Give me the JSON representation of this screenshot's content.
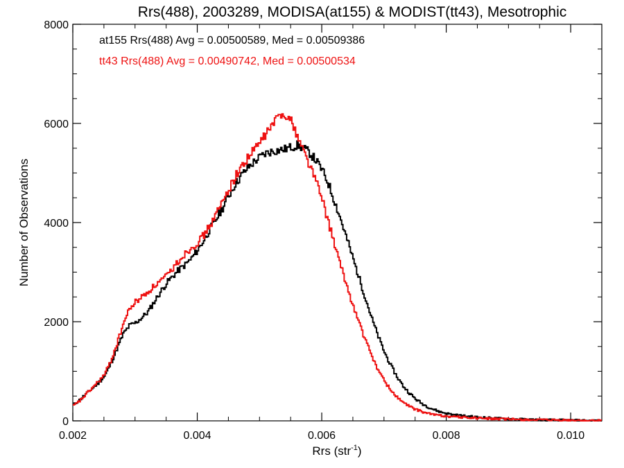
{
  "chart_data": {
    "type": "line",
    "title": "Rrs(488), 2003289, MODISA(at155) & MODIST(tt43), Mesotrophic",
    "xlabel_base": "Rrs (str",
    "xlabel_sup": "-1",
    "xlabel_end": ")",
    "ylabel": "Number of Observations",
    "xlim": [
      0.002,
      0.0105
    ],
    "ylim": [
      0,
      8000
    ],
    "x_ticks": [
      "0.002",
      "0.004",
      "0.006",
      "0.008",
      "0.010"
    ],
    "x_tick_values": [
      0.002,
      0.004,
      0.006,
      0.008,
      0.01
    ],
    "y_ticks": [
      "0",
      "2000",
      "4000",
      "6000",
      "8000"
    ],
    "y_tick_values": [
      0,
      2000,
      4000,
      6000,
      8000
    ],
    "grid": false,
    "annotations": [
      {
        "text": "at155 Rrs(488) Avg = 0.00500589, Med = 0.00509386",
        "color": "#000000"
      },
      {
        "text": "tt43 Rrs(488) Avg = 0.00490742, Med = 0.00500534",
        "color": "#ee1111"
      }
    ],
    "series": [
      {
        "color": "#000000",
        "step": true,
        "points": [
          [
            0.002,
            320
          ],
          [
            0.0021,
            420
          ],
          [
            0.0022,
            540
          ],
          [
            0.0023,
            650
          ],
          [
            0.0024,
            760
          ],
          [
            0.0025,
            900
          ],
          [
            0.0026,
            1150
          ],
          [
            0.0027,
            1450
          ],
          [
            0.0028,
            1750
          ],
          [
            0.0029,
            1920
          ],
          [
            0.003,
            1980
          ],
          [
            0.0031,
            2080
          ],
          [
            0.0032,
            2200
          ],
          [
            0.0033,
            2400
          ],
          [
            0.0034,
            2600
          ],
          [
            0.0035,
            2780
          ],
          [
            0.0036,
            2920
          ],
          [
            0.0037,
            3050
          ],
          [
            0.0038,
            3150
          ],
          [
            0.0039,
            3280
          ],
          [
            0.004,
            3450
          ],
          [
            0.0041,
            3650
          ],
          [
            0.0042,
            3880
          ],
          [
            0.0043,
            4080
          ],
          [
            0.0044,
            4300
          ],
          [
            0.0045,
            4550
          ],
          [
            0.0046,
            4780
          ],
          [
            0.0047,
            4950
          ],
          [
            0.0048,
            5100
          ],
          [
            0.0049,
            5220
          ],
          [
            0.005,
            5320
          ],
          [
            0.0051,
            5400
          ],
          [
            0.0052,
            5440
          ],
          [
            0.0053,
            5460
          ],
          [
            0.0054,
            5480
          ],
          [
            0.0055,
            5520
          ],
          [
            0.0056,
            5560
          ],
          [
            0.0057,
            5500
          ],
          [
            0.0058,
            5400
          ],
          [
            0.0059,
            5250
          ],
          [
            0.006,
            5050
          ],
          [
            0.0061,
            4780
          ],
          [
            0.0062,
            4420
          ],
          [
            0.0063,
            4050
          ],
          [
            0.0064,
            3650
          ],
          [
            0.0065,
            3250
          ],
          [
            0.0066,
            2850
          ],
          [
            0.0067,
            2450
          ],
          [
            0.0068,
            2050
          ],
          [
            0.0069,
            1700
          ],
          [
            0.007,
            1380
          ],
          [
            0.0071,
            1120
          ],
          [
            0.0072,
            890
          ],
          [
            0.0073,
            700
          ],
          [
            0.0074,
            560
          ],
          [
            0.0075,
            440
          ],
          [
            0.0076,
            350
          ],
          [
            0.0077,
            280
          ],
          [
            0.0078,
            225
          ],
          [
            0.0079,
            180
          ],
          [
            0.008,
            150
          ],
          [
            0.0081,
            125
          ],
          [
            0.0082,
            110
          ],
          [
            0.0083,
            95
          ],
          [
            0.0084,
            85
          ],
          [
            0.0085,
            75
          ],
          [
            0.0086,
            66
          ],
          [
            0.0087,
            58
          ],
          [
            0.0088,
            52
          ],
          [
            0.0089,
            46
          ],
          [
            0.009,
            40
          ],
          [
            0.0091,
            36
          ],
          [
            0.0092,
            32
          ],
          [
            0.0093,
            28
          ],
          [
            0.0094,
            25
          ],
          [
            0.0095,
            22
          ],
          [
            0.0096,
            20
          ],
          [
            0.0097,
            18
          ],
          [
            0.0098,
            16
          ],
          [
            0.0099,
            14
          ],
          [
            0.01,
            12
          ],
          [
            0.0101,
            10
          ],
          [
            0.0102,
            8
          ],
          [
            0.0103,
            6
          ],
          [
            0.0104,
            5
          ],
          [
            0.0105,
            4
          ]
        ]
      },
      {
        "color": "#ee1111",
        "step": true,
        "points": [
          [
            0.002,
            300
          ],
          [
            0.0021,
            400
          ],
          [
            0.0022,
            530
          ],
          [
            0.0023,
            660
          ],
          [
            0.0024,
            790
          ],
          [
            0.0025,
            930
          ],
          [
            0.0026,
            1200
          ],
          [
            0.0027,
            1550
          ],
          [
            0.0028,
            1950
          ],
          [
            0.0029,
            2250
          ],
          [
            0.003,
            2400
          ],
          [
            0.0031,
            2500
          ],
          [
            0.0032,
            2600
          ],
          [
            0.0033,
            2720
          ],
          [
            0.0034,
            2820
          ],
          [
            0.0035,
            2920
          ],
          [
            0.0036,
            3080
          ],
          [
            0.0037,
            3240
          ],
          [
            0.0038,
            3380
          ],
          [
            0.0039,
            3500
          ],
          [
            0.004,
            3600
          ],
          [
            0.0041,
            3750
          ],
          [
            0.0042,
            3950
          ],
          [
            0.0043,
            4180
          ],
          [
            0.0044,
            4420
          ],
          [
            0.0045,
            4680
          ],
          [
            0.0046,
            4920
          ],
          [
            0.0047,
            5120
          ],
          [
            0.0048,
            5300
          ],
          [
            0.0049,
            5460
          ],
          [
            0.005,
            5620
          ],
          [
            0.0051,
            5800
          ],
          [
            0.0052,
            5980
          ],
          [
            0.0053,
            6150
          ],
          [
            0.0054,
            6200
          ],
          [
            0.0055,
            6050
          ],
          [
            0.0056,
            5750
          ],
          [
            0.0057,
            5450
          ],
          [
            0.0058,
            5150
          ],
          [
            0.0059,
            4850
          ],
          [
            0.006,
            4450
          ],
          [
            0.0061,
            4000
          ],
          [
            0.0062,
            3550
          ],
          [
            0.0063,
            3100
          ],
          [
            0.0064,
            2700
          ],
          [
            0.0065,
            2300
          ],
          [
            0.0066,
            1950
          ],
          [
            0.0067,
            1600
          ],
          [
            0.0068,
            1300
          ],
          [
            0.0069,
            1020
          ],
          [
            0.007,
            800
          ],
          [
            0.0071,
            620
          ],
          [
            0.0072,
            480
          ],
          [
            0.0073,
            370
          ],
          [
            0.0074,
            290
          ],
          [
            0.0075,
            230
          ],
          [
            0.0076,
            185
          ],
          [
            0.0077,
            150
          ],
          [
            0.0078,
            125
          ],
          [
            0.0079,
            108
          ],
          [
            0.008,
            95
          ],
          [
            0.0081,
            85
          ],
          [
            0.0082,
            76
          ],
          [
            0.0083,
            68
          ],
          [
            0.0084,
            61
          ],
          [
            0.0085,
            55
          ],
          [
            0.0086,
            49
          ],
          [
            0.0087,
            44
          ],
          [
            0.0088,
            40
          ],
          [
            0.0089,
            36
          ],
          [
            0.009,
            32
          ],
          [
            0.0091,
            29
          ],
          [
            0.0092,
            26
          ],
          [
            0.0093,
            23
          ],
          [
            0.0094,
            20
          ],
          [
            0.0095,
            18
          ],
          [
            0.0096,
            16
          ],
          [
            0.0097,
            14
          ],
          [
            0.0098,
            12
          ],
          [
            0.0099,
            11
          ],
          [
            0.01,
            10
          ],
          [
            0.0101,
            8
          ],
          [
            0.0102,
            7
          ],
          [
            0.0103,
            5
          ],
          [
            0.0104,
            4
          ],
          [
            0.0105,
            3
          ]
        ]
      }
    ]
  }
}
